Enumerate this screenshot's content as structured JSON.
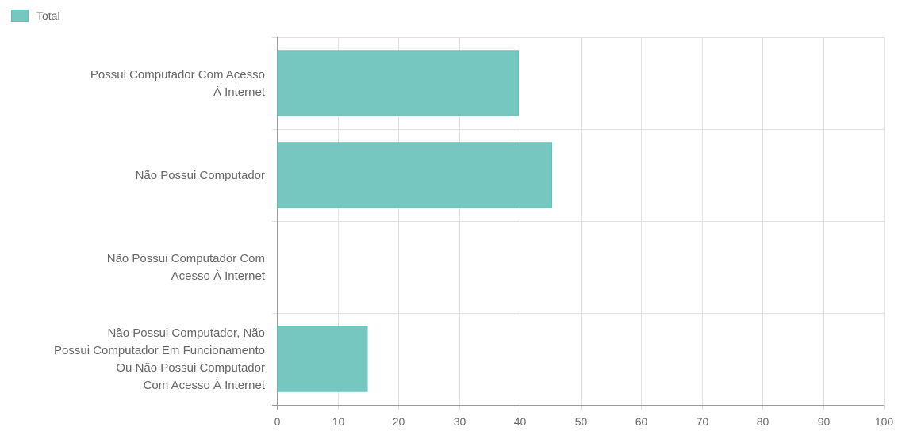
{
  "chart_data": {
    "type": "bar",
    "orientation": "horizontal",
    "categories": [
      [
        "Possui Computador Com Acesso",
        "À Internet"
      ],
      [
        "Não Possui Computador"
      ],
      [
        "Não Possui Computador Com",
        "Acesso À Internet"
      ],
      [
        "Não Possui Computador, Não",
        "Possui Computador Em Funcionamento",
        "Ou Não Possui Computador",
        "Com Acesso À Internet"
      ]
    ],
    "series": [
      {
        "name": "Total",
        "values": [
          39.8,
          45.3,
          0,
          14.9
        ]
      }
    ],
    "xlim": [
      0,
      100
    ],
    "xticks": [
      "0",
      "10",
      "20",
      "30",
      "40",
      "50",
      "60",
      "70",
      "80",
      "90",
      "100"
    ],
    "grid": true,
    "legend": "top-left",
    "colors": {
      "bar_fill": "#77c7c1",
      "bar_stroke": "#5fbfb6",
      "grid": "#e0e0e0",
      "axis": "#999999",
      "label": "#666666"
    }
  }
}
